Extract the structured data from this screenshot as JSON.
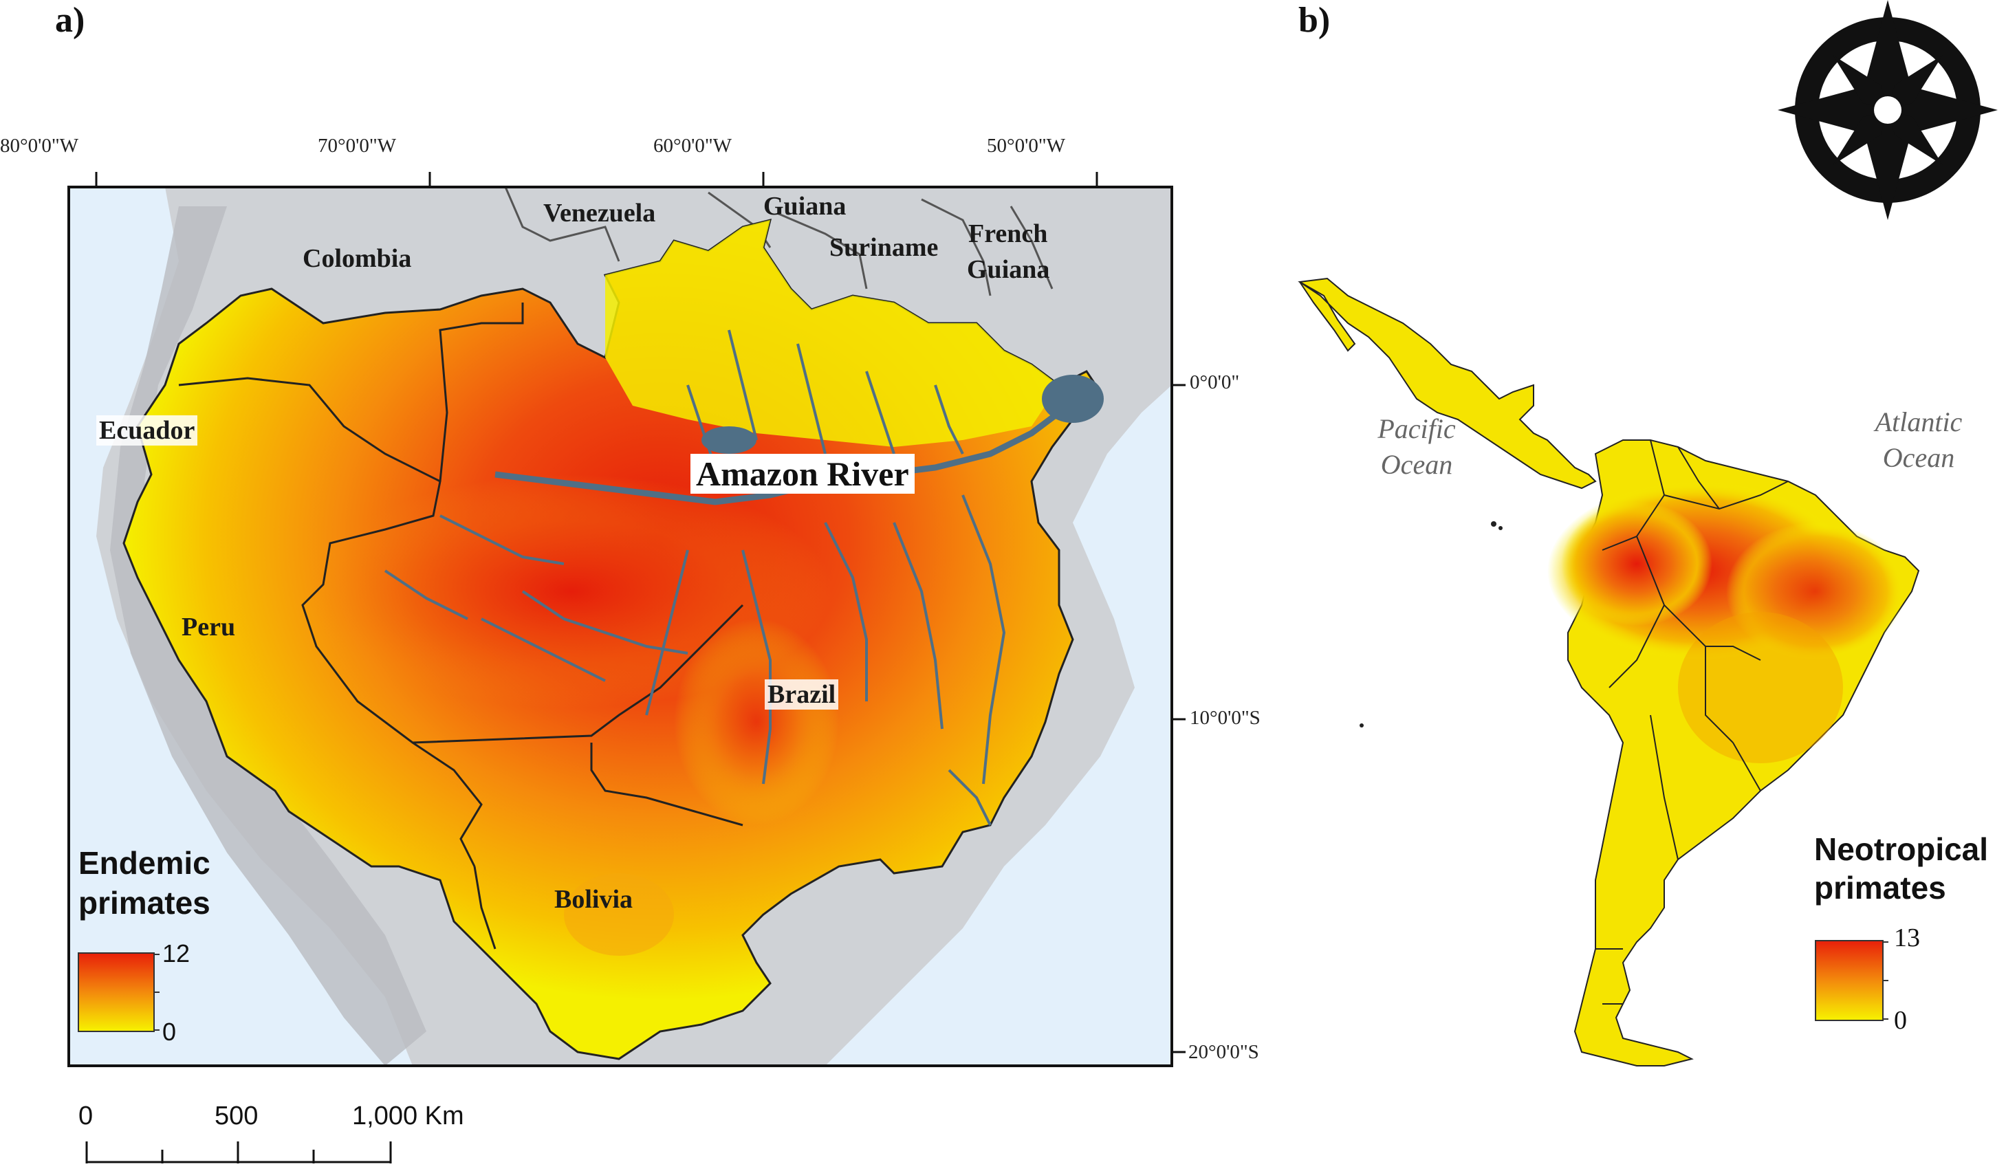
{
  "panel_a": {
    "label": "a)",
    "longitude_labels": [
      "80°0'0\"W",
      "70°0'0\"W",
      "60°0'0\"W",
      "50°0'0\"W"
    ],
    "latitude_labels": [
      "0°0'0\"",
      "10°0'0\"S",
      "20°0'0\"S"
    ],
    "countries": {
      "venezuela": "Venezuela",
      "guiana": "Guiana",
      "suriname": "Suriname",
      "french_guiana_line1": "French",
      "french_guiana_line2": "Guiana",
      "colombia": "Colombia",
      "ecuador": "Ecuador",
      "peru": "Peru",
      "brazil": "Brazil",
      "bolivia": "Bolivia"
    },
    "river_label": "Amazon River",
    "legend": {
      "title_line1": "Endemic",
      "title_line2": "primates",
      "max": "12",
      "min": "0",
      "color_high": "#e8200a",
      "color_low": "#f7f200"
    },
    "scale_bar": {
      "tick_labels": [
        "0",
        "500",
        "1,000 Km"
      ]
    }
  },
  "panel_b": {
    "label": "b)",
    "ocean_pacific_line1": "Pacific",
    "ocean_pacific_line2": "Ocean",
    "ocean_atlantic_line1": "Atlantic",
    "ocean_atlantic_line2": "Ocean",
    "legend": {
      "title_line1": "Neotropical",
      "title_line2": "primates",
      "max": "13",
      "min": "0",
      "color_high": "#e8200a",
      "color_low": "#f7f200"
    },
    "north_arrow_icon": "compass-rose-icon"
  },
  "colors": {
    "ocean": "#e3f0fb",
    "land_outside": "#cfd2d6",
    "river": "#4f6f86",
    "richness_high": "#e51b0a",
    "richness_mid": "#f58a0c",
    "richness_low": "#f5f000"
  }
}
